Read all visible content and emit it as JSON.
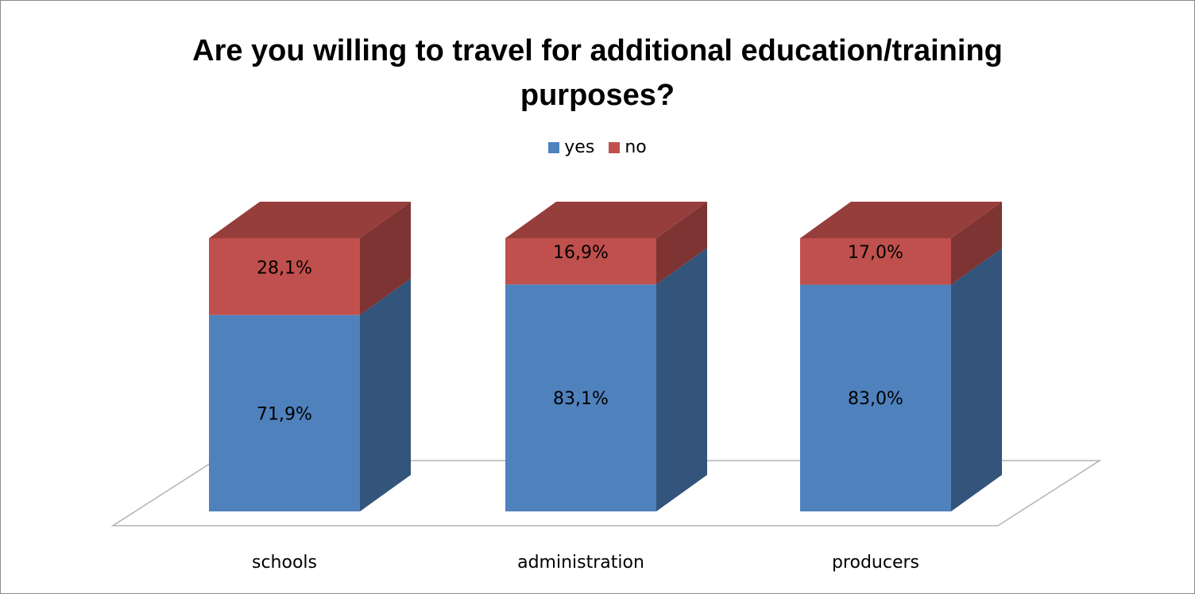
{
  "chart_data": {
    "type": "bar",
    "stacked": true,
    "style": "3d",
    "title": [
      "Are you willing to travel for additional education/training",
      "purposes?"
    ],
    "categories": [
      "schools",
      "administration",
      "producers"
    ],
    "series": [
      {
        "name": "yes",
        "color": "#4f81bd",
        "values": [
          71.9,
          83.1,
          83.0
        ],
        "labels": [
          "71,9%",
          "83,1%",
          "83,0%"
        ]
      },
      {
        "name": "no",
        "color": "#c0504d",
        "values": [
          28.1,
          16.9,
          17.0
        ],
        "labels": [
          "28,1%",
          "16,9%",
          "17,0%"
        ]
      }
    ],
    "ylim": [
      0,
      100
    ],
    "legend_position": "top",
    "grid": false
  }
}
